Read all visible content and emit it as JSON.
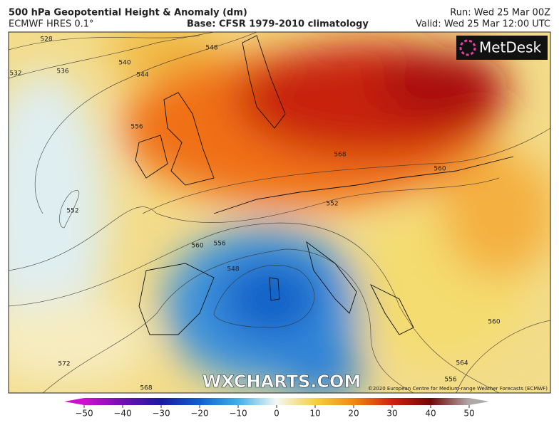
{
  "header": {
    "title": "500 hPa Geopotential Height & Anomaly (dm)",
    "model": "ECMWF HRES 0.1°",
    "base": "Base: CFSR 1979-2010 climatology",
    "run": "Run: Wed 25 Mar 00Z",
    "valid": "Valid: Wed 25 Mar 12:00 UTC"
  },
  "map": {
    "logo": "MetDesk",
    "watermark": "WXCHARTS.COM",
    "copyright": "©2020 European Centre for Medium-range Weather Forecasts (ECMWF)",
    "contour_labels": [
      528,
      532,
      536,
      540,
      544,
      548,
      556,
      552,
      568,
      560,
      552,
      560,
      556,
      548,
      560,
      564,
      572,
      568,
      556
    ]
  },
  "colorbar": {
    "lim": [
      -50,
      50
    ],
    "ticks": [
      {
        "value": -50,
        "label": "−50"
      },
      {
        "value": -40,
        "label": "−40"
      },
      {
        "value": -30,
        "label": "−30"
      },
      {
        "value": -20,
        "label": "−20"
      },
      {
        "value": -10,
        "label": "−10"
      },
      0,
      10,
      20,
      30,
      40,
      50
    ]
  }
}
